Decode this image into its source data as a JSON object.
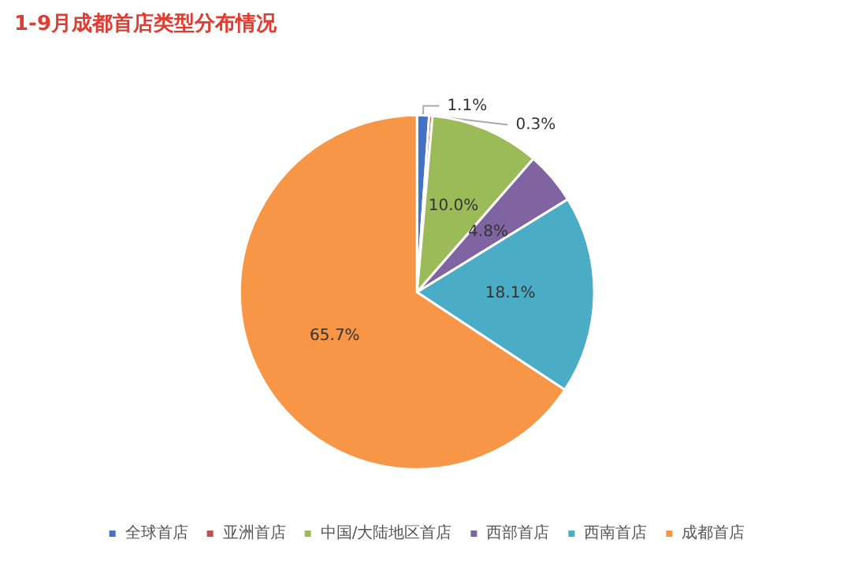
{
  "chart_data": {
    "type": "pie",
    "title": "1-9月成都首店类型分布情况",
    "categories": [
      "全球首店",
      "亚洲首店",
      "中国/大陆地区首店",
      "西部首店",
      "西南首店",
      "成都首店"
    ],
    "values": [
      1.1,
      0.3,
      10.0,
      4.8,
      18.1,
      65.7
    ],
    "value_labels": [
      "1.1%",
      "0.3%",
      "10.0%",
      "4.8%",
      "18.1%",
      "65.7%"
    ],
    "colors": [
      "#4472c4",
      "#c0504d",
      "#9bbb59",
      "#8064a2",
      "#4bacc6",
      "#f79646"
    ],
    "legend": "bottom"
  }
}
